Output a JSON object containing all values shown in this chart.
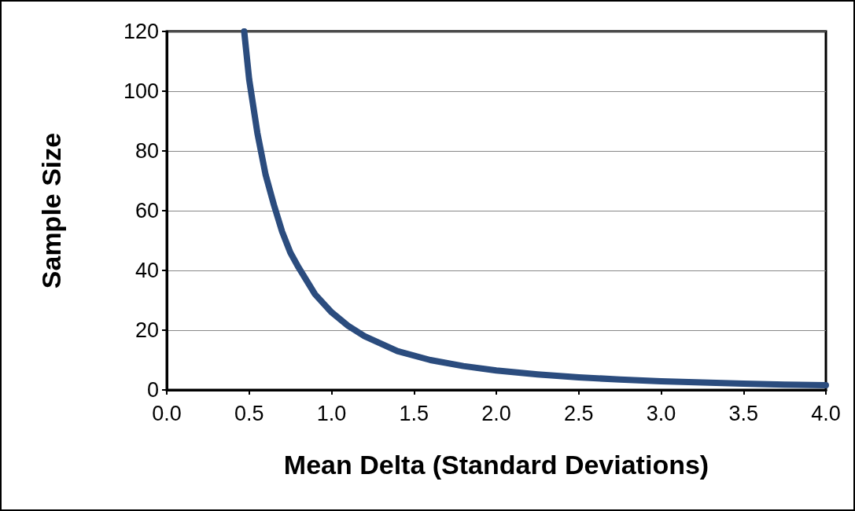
{
  "chart_data": {
    "type": "line",
    "xlabel": "Mean Delta (Standard Deviations)",
    "ylabel": "Sample Size",
    "x": [
      0.47,
      0.5,
      0.55,
      0.6,
      0.65,
      0.7,
      0.75,
      0.8,
      0.9,
      1.0,
      1.1,
      1.2,
      1.4,
      1.6,
      1.8,
      2.0,
      2.25,
      2.5,
      2.75,
      3.0,
      3.25,
      3.5,
      3.75,
      4.0
    ],
    "series": [
      {
        "color": "#2b4c7e",
        "values": [
          120,
          104,
          86,
          72,
          62,
          53,
          46,
          41,
          32,
          26,
          21.5,
          18,
          13,
          10,
          8,
          6.5,
          5.2,
          4.2,
          3.5,
          2.9,
          2.5,
          2.1,
          1.8,
          1.6
        ]
      }
    ],
    "xlim": [
      0,
      4
    ],
    "xticks": [
      {
        "value": 0,
        "label": "0.0"
      },
      {
        "value": 0.5,
        "label": "0.5"
      },
      {
        "value": 1,
        "label": "1.0"
      },
      {
        "value": 1.5,
        "label": "1.5"
      },
      {
        "value": 2,
        "label": "2.0"
      },
      {
        "value": 2.5,
        "label": "2.5"
      },
      {
        "value": 3,
        "label": "3.0"
      },
      {
        "value": 3.5,
        "label": "3.5"
      },
      {
        "value": 4,
        "label": "4.0"
      }
    ],
    "ylim": [
      0,
      120
    ],
    "yticks": [
      0,
      20,
      40,
      60,
      80,
      100,
      120
    ],
    "grid": "y",
    "line_style": "solid"
  }
}
